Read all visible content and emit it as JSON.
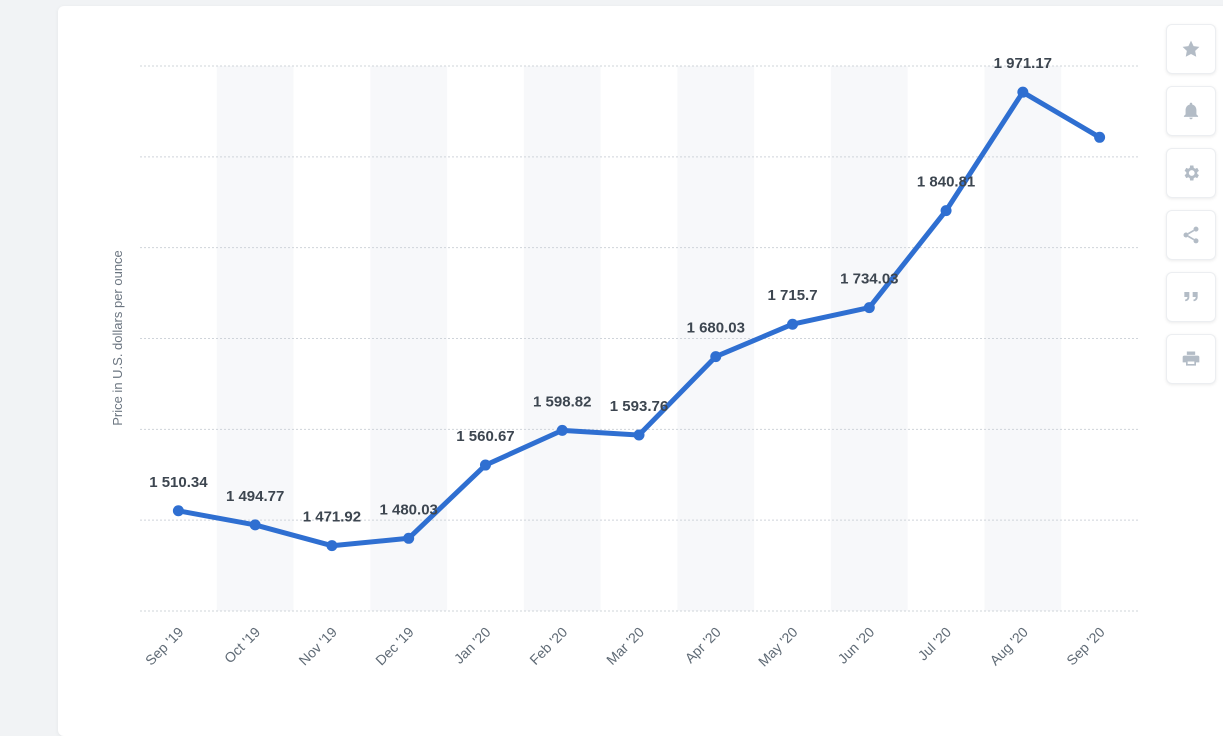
{
  "chart_data": {
    "type": "line",
    "title": "",
    "xlabel": "",
    "ylabel": "Price in U.S. dollars per ounce",
    "categories": [
      "Sep '19",
      "Oct '19",
      "Nov '19",
      "Dec '19",
      "Jan '20",
      "Feb '20",
      "Mar '20",
      "Apr '20",
      "May '20",
      "Jun '20",
      "Jul '20",
      "Aug '20",
      "Sep '20"
    ],
    "series": [
      {
        "values": [
          1510.34,
          1494.77,
          1471.92,
          1480.03,
          1560.67,
          1598.82,
          1593.76,
          1680.03,
          1715.7,
          1734.03,
          1840.81,
          1971.17,
          1921.5
        ],
        "data_labels": [
          "1 510.34",
          "1 494.77",
          "1 471.92",
          "1 480.03",
          "1 560.67",
          "1 598.82",
          "1 593.76",
          "1 680.03",
          "1 715.7",
          "1 734.03",
          "1 840.81",
          "1 971.17",
          ""
        ]
      }
    ],
    "ylim": [
      1400,
      2000
    ],
    "grid": true,
    "legend": "none",
    "line_color": "#2f6fd1",
    "band_color": "#f7f8fa",
    "gridline_color": "#cfd4da"
  },
  "toolbar": {
    "buttons": [
      {
        "name": "favorite-button",
        "icon": "star-icon"
      },
      {
        "name": "notification-button",
        "icon": "bell-icon"
      },
      {
        "name": "settings-button",
        "icon": "gear-icon"
      },
      {
        "name": "share-button",
        "icon": "share-icon"
      },
      {
        "name": "cite-button",
        "icon": "quote-icon"
      },
      {
        "name": "print-button",
        "icon": "print-icon"
      }
    ]
  }
}
